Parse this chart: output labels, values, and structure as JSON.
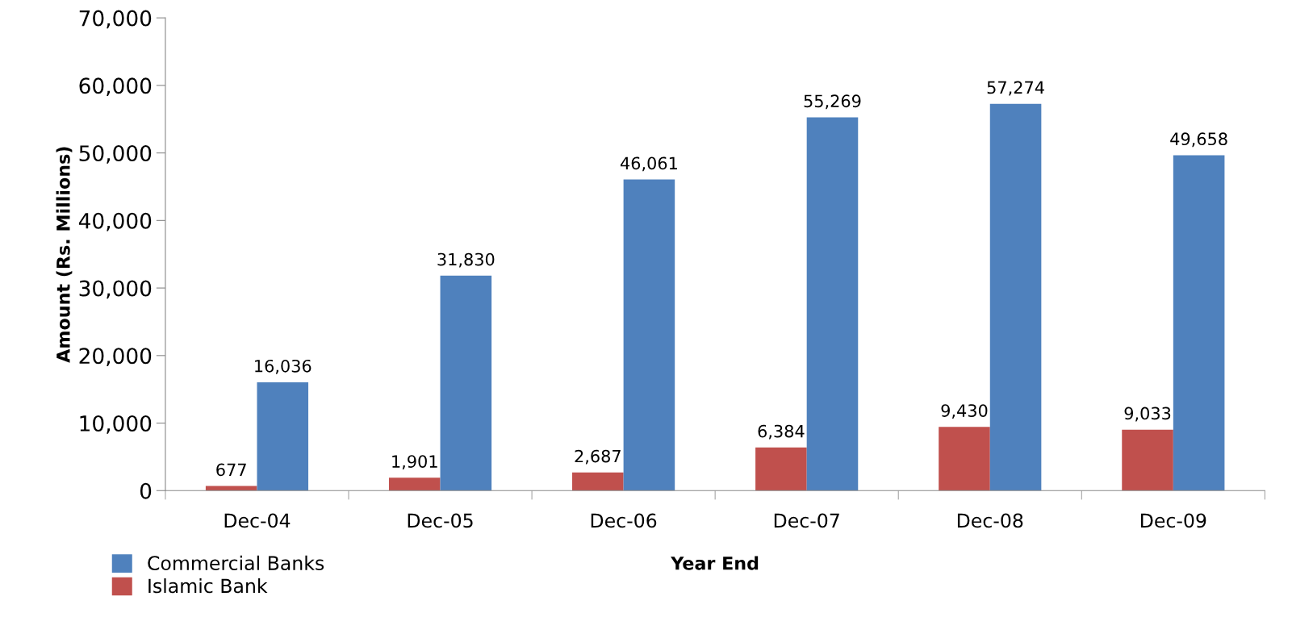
{
  "chart_data": {
    "type": "bar",
    "xlabel": "Year End",
    "ylabel": "Amount (Rs. Millions)",
    "categories": [
      "Dec-04",
      "Dec-05",
      "Dec-06",
      "Dec-07",
      "Dec-08",
      "Dec-09"
    ],
    "series": [
      {
        "name": "Islamic Bank",
        "color": "#c0504d",
        "values": [
          677,
          1901,
          2687,
          6384,
          9430,
          9033
        ],
        "value_labels": [
          "677",
          "1,901",
          "2,687",
          "6,384",
          "9,430",
          "9,033"
        ]
      },
      {
        "name": "Commercial Banks",
        "color": "#4f81bd",
        "values": [
          16036,
          31830,
          46061,
          55269,
          57274,
          49658
        ],
        "value_labels": [
          "16,036",
          "31,830",
          "46,061",
          "55,269",
          "57,274",
          "49,658"
        ]
      }
    ],
    "ylim": [
      0,
      70000
    ],
    "yticks": [
      {
        "value": 0,
        "label": "0"
      },
      {
        "value": 10000,
        "label": "10,000"
      },
      {
        "value": 20000,
        "label": "20,000"
      },
      {
        "value": 30000,
        "label": "30,000"
      },
      {
        "value": 40000,
        "label": "40,000"
      },
      {
        "value": 50000,
        "label": "50,000"
      },
      {
        "value": 60000,
        "label": "60,000"
      },
      {
        "value": 70000,
        "label": "70,000"
      }
    ],
    "grid": false,
    "legend": "bottom left"
  }
}
